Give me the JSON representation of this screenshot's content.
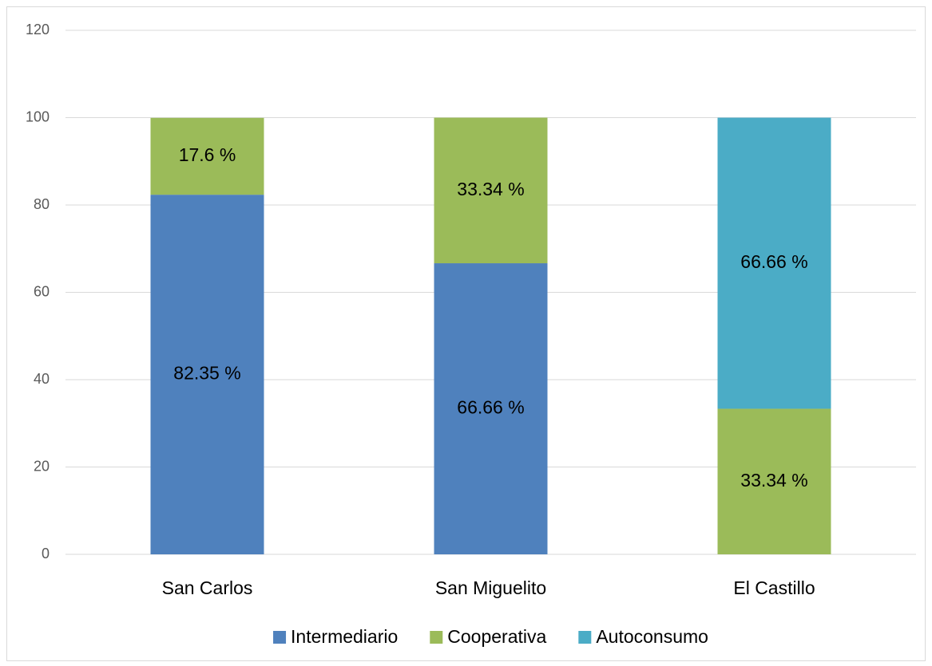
{
  "chart_data": {
    "type": "stacked_bar",
    "categories": [
      "San Carlos",
      "San Miguelito",
      "El Castillo"
    ],
    "series": [
      {
        "name": "Intermediario",
        "color": "#4f81bd",
        "values": [
          82.35,
          66.66,
          null
        ],
        "value_labels": [
          "82.35 %",
          "66.66 %",
          null
        ]
      },
      {
        "name": "Cooperativa",
        "color": "#9bbb59",
        "values": [
          17.6,
          33.34,
          33.34
        ],
        "value_labels": [
          "17.6 %",
          "33.34 %",
          "33.34 %"
        ]
      },
      {
        "name": "Autoconsumo",
        "color": "#4bacc6",
        "values": [
          null,
          null,
          66.66
        ],
        "value_labels": [
          null,
          null,
          "66.66 %"
        ]
      }
    ],
    "ylim": [
      0,
      120
    ],
    "yticks": [
      0,
      20,
      40,
      60,
      80,
      100,
      120
    ],
    "grid": true,
    "legend": "bottom"
  }
}
